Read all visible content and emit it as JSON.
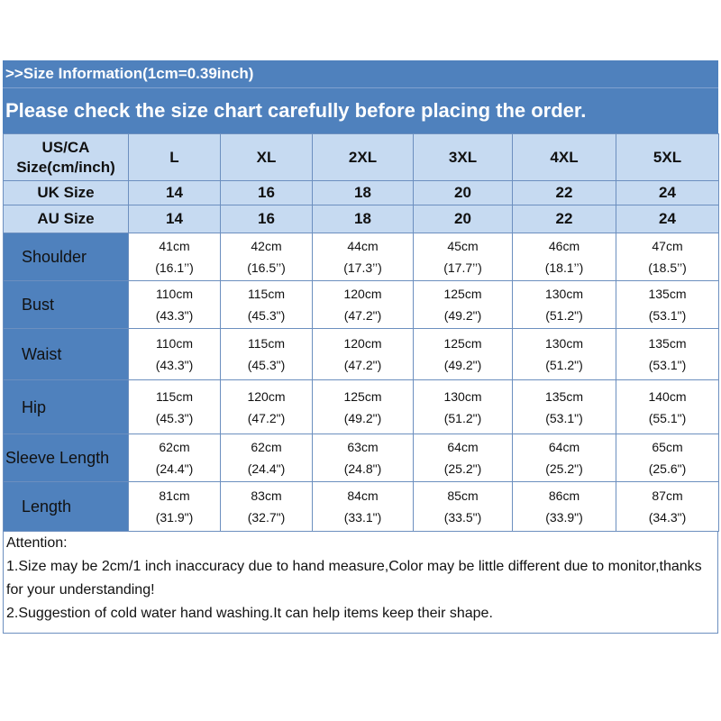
{
  "header": {
    "line1": ">>Size Information(1cm=0.39inch)",
    "line2": "Please check the size chart carefully before placing the order."
  },
  "size_rows": [
    {
      "label_line1": "US/CA",
      "label_line2": "Size(cm/inch)",
      "values": [
        "L",
        "XL",
        "2XL",
        "3XL",
        "4XL",
        "5XL"
      ]
    },
    {
      "label": "UK Size",
      "values": [
        "14",
        "16",
        "18",
        "20",
        "22",
        "24"
      ]
    },
    {
      "label": "AU Size",
      "values": [
        "14",
        "16",
        "18",
        "20",
        "22",
        "24"
      ]
    }
  ],
  "measurements": [
    {
      "label": "Shoulder",
      "cm": [
        "41cm",
        "42cm",
        "44cm",
        "45cm",
        "46cm",
        "47cm"
      ],
      "inch": [
        "(16.1’’)",
        "(16.5’’)",
        "(17.3’’)",
        "(17.7’’)",
        "(18.1’’)",
        "(18.5’’)"
      ]
    },
    {
      "label": "Bust",
      "cm": [
        "110cm",
        "115cm",
        "120cm",
        "125cm",
        "130cm",
        "135cm"
      ],
      "inch": [
        "(43.3\")",
        "(45.3\")",
        "(47.2\")",
        "(49.2\")",
        "(51.2\")",
        "(53.1\")"
      ]
    },
    {
      "label": "Waist",
      "cm": [
        "110cm",
        "115cm",
        "120cm",
        "125cm",
        "130cm",
        "135cm"
      ],
      "inch": [
        "(43.3\")",
        "(45.3\")",
        "(47.2\")",
        "(49.2\")",
        "(51.2\")",
        "(53.1\")"
      ]
    },
    {
      "label": "Hip",
      "cm": [
        "115cm",
        "120cm",
        "125cm",
        "130cm",
        "135cm",
        "140cm"
      ],
      "inch": [
        "(45.3\")",
        "(47.2\")",
        "(49.2\")",
        "(51.2\")",
        "(53.1\")",
        "(55.1\")"
      ]
    },
    {
      "label": "Sleeve Length",
      "cm": [
        "62cm",
        "62cm",
        "63cm",
        "64cm",
        "64cm",
        "65cm"
      ],
      "inch": [
        "(24.4\")",
        "(24.4\")",
        "(24.8\")",
        "(25.2\")",
        "(25.2\")",
        "(25.6\")"
      ]
    },
    {
      "label": "Length",
      "cm": [
        "81cm",
        "83cm",
        "84cm",
        "85cm",
        "86cm",
        "87cm"
      ],
      "inch": [
        "(31.9\")",
        "(32.7\")",
        "(33.1\")",
        "(33.5\")",
        "(33.9\")",
        "(34.3\")"
      ]
    }
  ],
  "attention": {
    "title": "Attention:",
    "line1": "1.Size may be 2cm/1 inch inaccuracy due to hand measure,Color may be little different due to monitor,thanks for your understanding!",
    "line2": "2.Suggestion of cold water hand washing.It can help items keep their shape."
  },
  "colors": {
    "header_blue": "#4f81bd",
    "light_blue": "#c6daf1",
    "border": "#6c8fbf"
  }
}
